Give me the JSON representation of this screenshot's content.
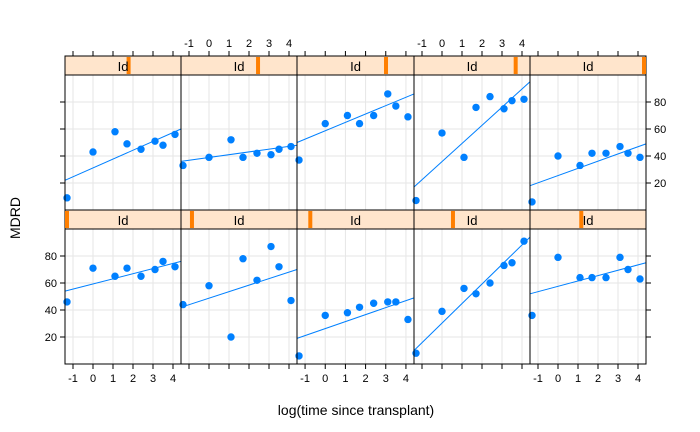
{
  "chart_data": {
    "type": "scatter",
    "layout": "lattice 5x2",
    "xlabel": "log(time since transplant)",
    "ylabel": "MDRD",
    "x_ticks": [
      -1,
      0,
      1,
      2,
      3,
      4
    ],
    "x_tick_labels": [
      "-1",
      "0",
      "1",
      "2",
      "3",
      "4"
    ],
    "xlim": [
      -1.4,
      4.4
    ],
    "y_ticks": [
      20,
      40,
      60,
      80
    ],
    "y_tick_labels": [
      "20",
      "40",
      "60",
      "80"
    ],
    "ylim": [
      0,
      100
    ],
    "grid": true,
    "colors": {
      "points": "#0080ff",
      "line": "#0080ff",
      "strip_bg": "#ffe5cc",
      "strip_marker": "#ff7f00",
      "grid": "#e6e6e6",
      "frame": "#000000"
    },
    "panels": [
      {
        "row": "bottom",
        "col": 1,
        "strip_label": "Id",
        "strip_level": 0.0,
        "points": [
          [
            -1.3,
            46
          ],
          [
            0,
            71
          ],
          [
            1.1,
            65
          ],
          [
            1.7,
            71
          ],
          [
            2.4,
            65
          ],
          [
            3.1,
            70
          ],
          [
            3.5,
            76
          ],
          [
            4.1,
            72
          ]
        ],
        "fit": [
          [
            -1.4,
            54
          ],
          [
            4.4,
            76
          ]
        ]
      },
      {
        "row": "bottom",
        "col": 2,
        "strip_label": "Id",
        "strip_level": 0.08,
        "points": [
          [
            -1.3,
            44
          ],
          [
            0,
            58
          ],
          [
            1.1,
            20
          ],
          [
            1.7,
            78
          ],
          [
            2.4,
            62
          ],
          [
            3.1,
            87
          ],
          [
            3.5,
            72
          ],
          [
            4.1,
            47
          ]
        ],
        "fit": [
          [
            -1.4,
            42
          ],
          [
            4.4,
            70
          ]
        ]
      },
      {
        "row": "bottom",
        "col": 3,
        "strip_label": "Id",
        "strip_level": 0.1,
        "points": [
          [
            -1.3,
            6
          ],
          [
            0,
            36
          ],
          [
            1.1,
            38
          ],
          [
            1.7,
            42
          ],
          [
            2.4,
            45
          ],
          [
            3.1,
            46
          ],
          [
            3.5,
            46
          ],
          [
            4.1,
            33
          ]
        ],
        "fit": [
          [
            -1.4,
            19
          ],
          [
            4.4,
            49
          ]
        ]
      },
      {
        "row": "bottom",
        "col": 4,
        "strip_label": "Id",
        "strip_level": 0.33,
        "points": [
          [
            -1.3,
            8
          ],
          [
            0,
            39
          ],
          [
            1.1,
            56
          ],
          [
            1.7,
            52
          ],
          [
            2.4,
            60
          ],
          [
            3.1,
            73
          ],
          [
            3.5,
            75
          ],
          [
            4.1,
            91
          ]
        ],
        "fit": [
          [
            -1.4,
            10
          ],
          [
            4.4,
            94
          ]
        ]
      },
      {
        "row": "bottom",
        "col": 5,
        "strip_label": "Id",
        "strip_level": 0.44,
        "points": [
          [
            -1.3,
            36
          ],
          [
            0,
            79
          ],
          [
            1.1,
            64
          ],
          [
            1.7,
            64
          ],
          [
            2.4,
            64
          ],
          [
            3.1,
            79
          ],
          [
            3.5,
            70
          ],
          [
            4.1,
            63
          ]
        ],
        "fit": [
          [
            -1.4,
            52
          ],
          [
            4.4,
            75
          ]
        ]
      },
      {
        "row": "top",
        "col": 1,
        "strip_label": "Id",
        "strip_level": 0.55,
        "points": [
          [
            -1.3,
            9
          ],
          [
            0,
            43
          ],
          [
            1.1,
            58
          ],
          [
            1.7,
            49
          ],
          [
            2.4,
            45
          ],
          [
            3.1,
            51
          ],
          [
            3.5,
            48
          ],
          [
            4.1,
            56
          ]
        ],
        "fit": [
          [
            -1.4,
            22
          ],
          [
            4.4,
            60
          ]
        ]
      },
      {
        "row": "top",
        "col": 2,
        "strip_label": "Id",
        "strip_level": 0.67,
        "points": [
          [
            -1.3,
            33
          ],
          [
            0,
            39
          ],
          [
            1.1,
            52
          ],
          [
            1.7,
            39
          ],
          [
            2.4,
            42
          ],
          [
            3.1,
            41
          ],
          [
            3.5,
            45
          ],
          [
            4.1,
            47
          ]
        ],
        "fit": [
          [
            -1.4,
            36
          ],
          [
            4.4,
            48
          ]
        ]
      },
      {
        "row": "top",
        "col": 3,
        "strip_label": "Id",
        "strip_level": 0.77,
        "points": [
          [
            -1.3,
            37
          ],
          [
            0,
            64
          ],
          [
            1.1,
            70
          ],
          [
            1.7,
            64
          ],
          [
            2.4,
            70
          ],
          [
            3.1,
            86
          ],
          [
            3.5,
            77
          ],
          [
            4.1,
            69
          ]
        ],
        "fit": [
          [
            -1.4,
            50
          ],
          [
            4.4,
            86
          ]
        ]
      },
      {
        "row": "top",
        "col": 4,
        "strip_label": "Id",
        "strip_level": 0.89,
        "points": [
          [
            -1.3,
            7
          ],
          [
            0,
            57
          ],
          [
            1.1,
            39
          ],
          [
            1.7,
            76
          ],
          [
            2.4,
            84
          ],
          [
            3.1,
            75
          ],
          [
            3.5,
            81
          ],
          [
            4.1,
            82
          ]
        ],
        "fit": [
          [
            -1.4,
            17
          ],
          [
            4.4,
            95
          ]
        ]
      },
      {
        "row": "top",
        "col": 5,
        "strip_label": "Id",
        "strip_level": 1.0,
        "points": [
          [
            -1.3,
            6
          ],
          [
            0,
            40
          ],
          [
            1.1,
            33
          ],
          [
            1.7,
            42
          ],
          [
            2.4,
            42
          ],
          [
            3.1,
            47
          ],
          [
            3.5,
            42
          ],
          [
            4.1,
            39
          ]
        ],
        "fit": [
          [
            -1.4,
            18
          ],
          [
            4.4,
            49
          ]
        ]
      }
    ]
  }
}
